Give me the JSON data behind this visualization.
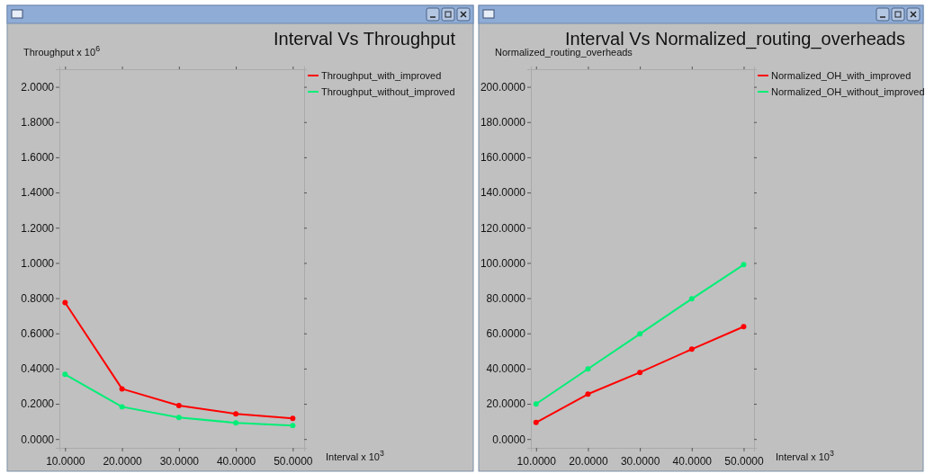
{
  "chart_data": [
    {
      "type": "line",
      "title": "Interval Vs Throughput",
      "xlabel": "Interval x 10$^{3}$",
      "ylabel": "Throughput x 10$^{6}$",
      "x": [
        10,
        20,
        30,
        40,
        50
      ],
      "series": [
        {
          "name": "Throughput_with_improved",
          "color": "#ff0000",
          "values": [
            0.775,
            0.285,
            0.19,
            0.143,
            0.117
          ]
        },
        {
          "name": "Throughput_without_improved",
          "color": "#00ee77",
          "values": [
            0.367,
            0.183,
            0.122,
            0.092,
            0.077
          ]
        }
      ],
      "xlim": [
        9,
        52
      ],
      "ylim": [
        -0.05,
        2.1
      ],
      "xticks": [
        {
          "value": 10,
          "label": "10.0000"
        },
        {
          "value": 20,
          "label": "20.0000"
        },
        {
          "value": 30,
          "label": "30.0000"
        },
        {
          "value": 40,
          "label": "40.0000"
        },
        {
          "value": 50,
          "label": "50.0000"
        }
      ],
      "yticks": [
        {
          "value": 0,
          "label": "0.0000"
        },
        {
          "value": 0.2,
          "label": "0.2000"
        },
        {
          "value": 0.4,
          "label": "0.4000"
        },
        {
          "value": 0.6,
          "label": "0.6000"
        },
        {
          "value": 0.8,
          "label": "0.8000"
        },
        {
          "value": 1.0,
          "label": "1.0000"
        },
        {
          "value": 1.2,
          "label": "1.2000"
        },
        {
          "value": 1.4,
          "label": "1.4000"
        },
        {
          "value": 1.6,
          "label": "1.6000"
        },
        {
          "value": 1.8,
          "label": "1.8000"
        },
        {
          "value": 2.0,
          "label": "2.0000"
        }
      ],
      "marker": "circle",
      "legend": "top right",
      "grid": false
    },
    {
      "type": "line",
      "title": "Interval Vs Normalized_routing_overheads",
      "xlabel": "Interval x 10$^{3}$",
      "ylabel": "Normalized_routing_overheads",
      "x": [
        10,
        20,
        30,
        40,
        50
      ],
      "series": [
        {
          "name": "Normalized_OH_with_improved",
          "color": "#ff0000",
          "values": [
            9.4,
            25.5,
            37.8,
            51,
            63.8
          ]
        },
        {
          "name": "Normalized_OH_without_improved",
          "color": "#00ee77",
          "values": [
            19.9,
            39.8,
            59.7,
            79.6,
            99
          ]
        }
      ],
      "xlim": [
        9,
        52
      ],
      "ylim": [
        -5,
        210
      ],
      "xticks": [
        {
          "value": 10,
          "label": "10.0000"
        },
        {
          "value": 20,
          "label": "20.0000"
        },
        {
          "value": 30,
          "label": "30.0000"
        },
        {
          "value": 40,
          "label": "40.0000"
        },
        {
          "value": 50,
          "label": "50.0000"
        }
      ],
      "yticks": [
        {
          "value": 0,
          "label": "0.0000"
        },
        {
          "value": 20,
          "label": "20.0000"
        },
        {
          "value": 40,
          "label": "40.0000"
        },
        {
          "value": 60,
          "label": "60.0000"
        },
        {
          "value": 80,
          "label": "80.0000"
        },
        {
          "value": 100,
          "label": "100.0000"
        },
        {
          "value": 120,
          "label": "120.0000"
        },
        {
          "value": 140,
          "label": "140.0000"
        },
        {
          "value": 160,
          "label": "160.0000"
        },
        {
          "value": 180,
          "label": "180.0000"
        },
        {
          "value": 200,
          "label": "200.0000"
        }
      ],
      "marker": "circle",
      "legend": "top right",
      "grid": false
    }
  ]
}
